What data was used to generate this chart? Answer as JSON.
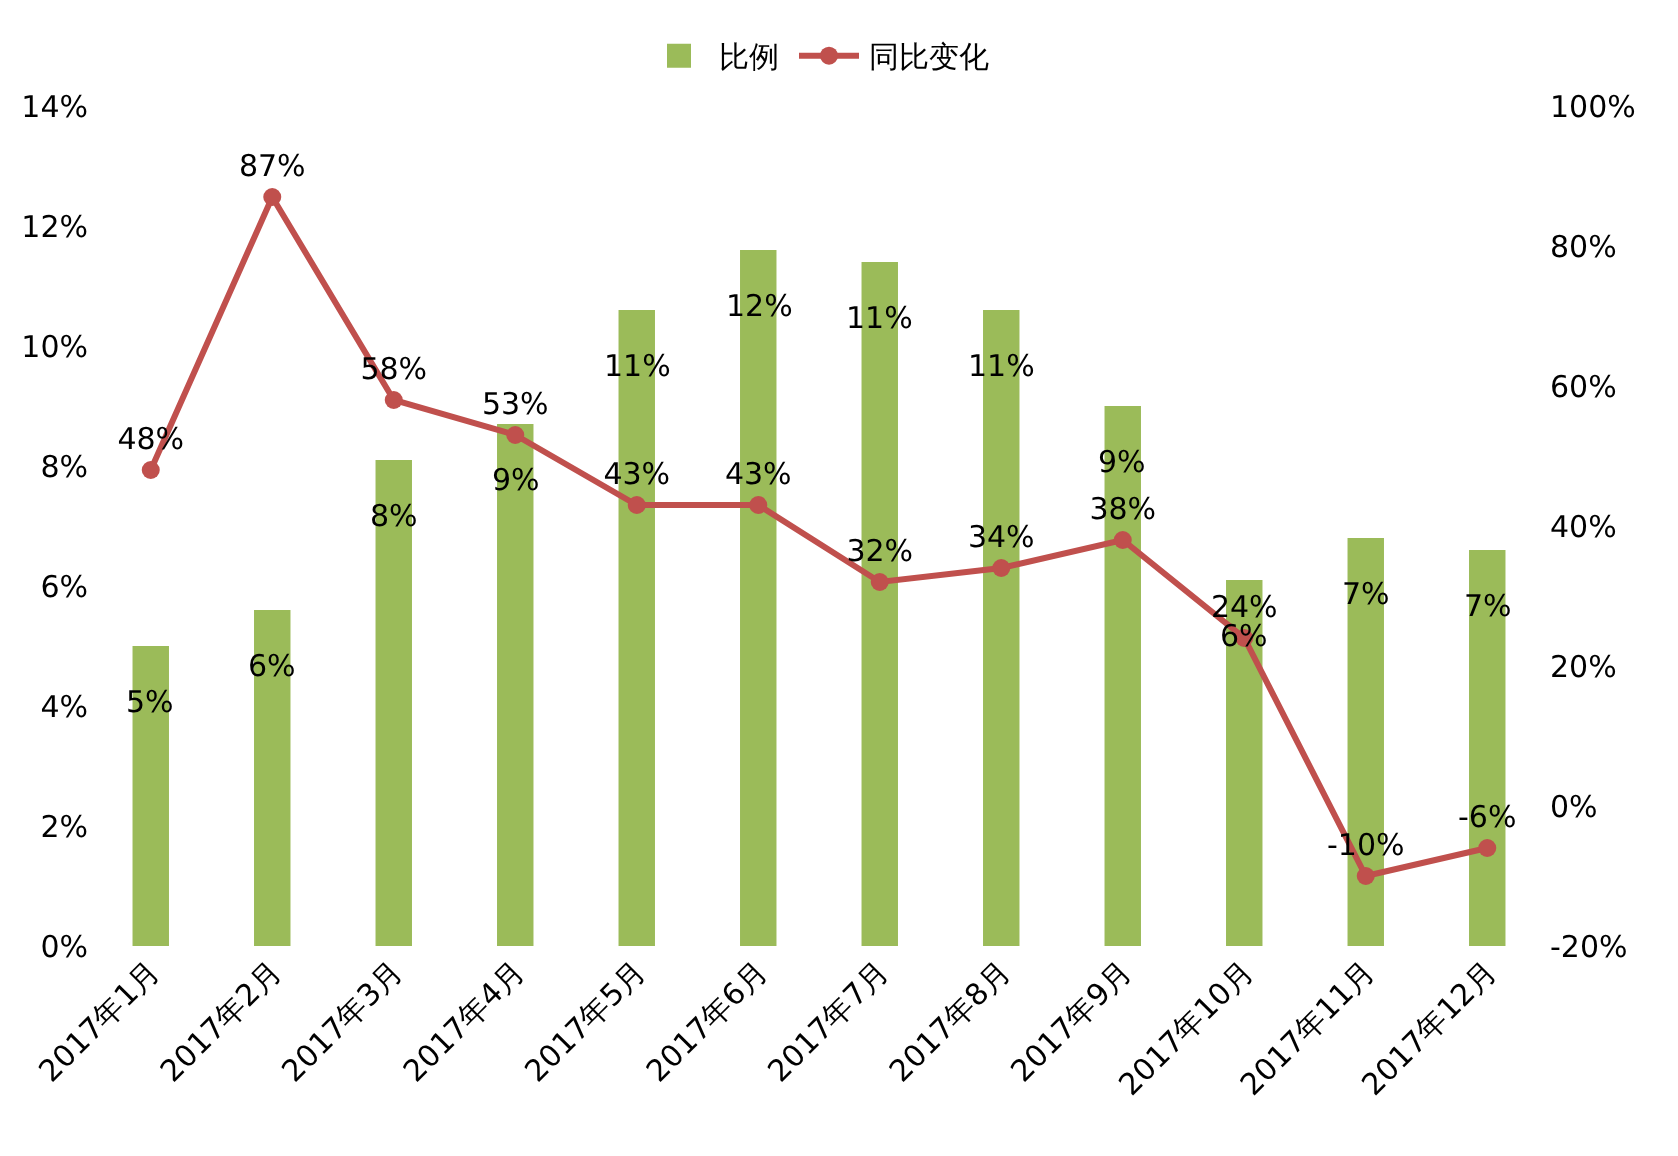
{
  "chart_data": {
    "type": "bar",
    "categories": [
      "2017年1月",
      "2017年2月",
      "2017年3月",
      "2017年4月",
      "2017年5月",
      "2017年6月",
      "2017年7月",
      "2017年8月",
      "2017年9月",
      "2017年10月",
      "2017年11月",
      "2017年12月"
    ],
    "series": [
      {
        "name": "比例",
        "color": "#9bbb59",
        "values": [
          5.0,
          5.6,
          8.1,
          8.7,
          10.6,
          11.6,
          11.4,
          10.6,
          9.0,
          6.1,
          6.8,
          6.6
        ],
        "value_labels": [
          "5%",
          "6%",
          "8%",
          "9%",
          "11%",
          "12%",
          "11%",
          "11%",
          "9%",
          "6%",
          "7%",
          "7%"
        ]
      },
      {
        "name": "同比变化",
        "type": "line",
        "axis": "y2",
        "color": "#c0504d",
        "marker": "circle",
        "values": [
          48,
          87,
          58,
          53,
          43,
          43,
          32,
          34,
          38,
          24,
          -10,
          -6
        ],
        "value_labels": [
          "48%",
          "87%",
          "58%",
          "53%",
          "43%",
          "43%",
          "32%",
          "34%",
          "38%",
          "24%",
          "-10%",
          "-6%"
        ]
      }
    ],
    "ylim": [
      0,
      14
    ],
    "yticks": [
      {
        "value": 0,
        "label": "0%"
      },
      {
        "value": 2,
        "label": "2%"
      },
      {
        "value": 4,
        "label": "4%"
      },
      {
        "value": 6,
        "label": "6%"
      },
      {
        "value": 8,
        "label": "8%"
      },
      {
        "value": 10,
        "label": "10%"
      },
      {
        "value": 12,
        "label": "12%"
      },
      {
        "value": 14,
        "label": "14%"
      }
    ],
    "y2lim": [
      -20,
      100
    ],
    "y2ticks": [
      {
        "value": -20,
        "label": "-20%"
      },
      {
        "value": 0,
        "label": "0%"
      },
      {
        "value": 20,
        "label": "20%"
      },
      {
        "value": 40,
        "label": "40%"
      },
      {
        "value": 60,
        "label": "60%"
      },
      {
        "value": 80,
        "label": "80%"
      },
      {
        "value": 100,
        "label": "100%"
      }
    ],
    "grid": false,
    "legend": "top"
  }
}
